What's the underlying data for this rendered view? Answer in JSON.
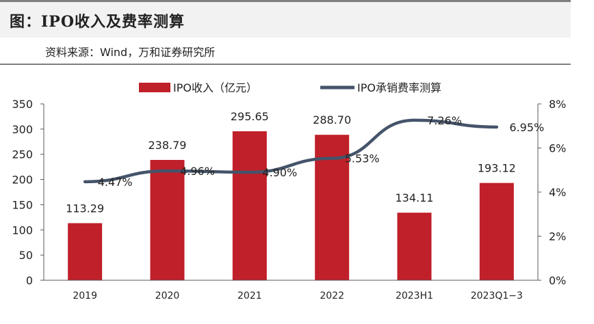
{
  "figure": {
    "title": "图：IPO收入及费率测算",
    "source": "资料来源：Wind，万和证券研究所"
  },
  "chart_data": {
    "type": "bar",
    "categories": [
      "2019",
      "2020",
      "2021",
      "2022",
      "2023H1",
      "2023Q1−3"
    ],
    "series": [
      {
        "name": "IPO收入（亿元）",
        "type": "bar",
        "axis": "left",
        "values": [
          113.29,
          238.79,
          295.65,
          288.7,
          134.11,
          193.12
        ],
        "labels": [
          "113.29",
          "238.79",
          "295.65",
          "288.70",
          "134.11",
          "193.12"
        ],
        "color": "#c0202a"
      },
      {
        "name": "IPO承销费率测算",
        "type": "line",
        "axis": "right",
        "values": [
          4.47,
          4.96,
          4.9,
          5.53,
          7.26,
          6.95
        ],
        "labels": [
          "4.47%",
          "4.96%",
          "4.90%",
          "5.53%",
          "7.26%",
          "6.95%"
        ],
        "color": "#44546a"
      }
    ],
    "y_left": {
      "ylim": [
        0,
        350
      ],
      "ticks": [
        "0",
        "50",
        "100",
        "150",
        "200",
        "250",
        "300",
        "350"
      ]
    },
    "y_right": {
      "ylim": [
        0,
        8
      ],
      "ticks": [
        "0%",
        "2%",
        "4%",
        "6%",
        "8%"
      ]
    },
    "grid": false,
    "legend_position": "top-center"
  }
}
